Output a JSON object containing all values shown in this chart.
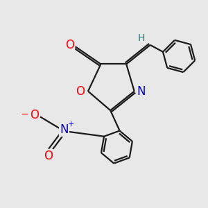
{
  "bg_color": "#e8e8e8",
  "bond_color": "#1a1a1a",
  "bond_width": 1.6,
  "atom_colors": {
    "O": "#ff0000",
    "N_blue": "#0000cc",
    "N_nitro": "#0000cc",
    "O_nitro": "#ff0000",
    "H": "#008080",
    "C": "#1a1a1a"
  },
  "font_size_atom": 11,
  "font_size_H": 10,
  "font_size_charge": 7
}
